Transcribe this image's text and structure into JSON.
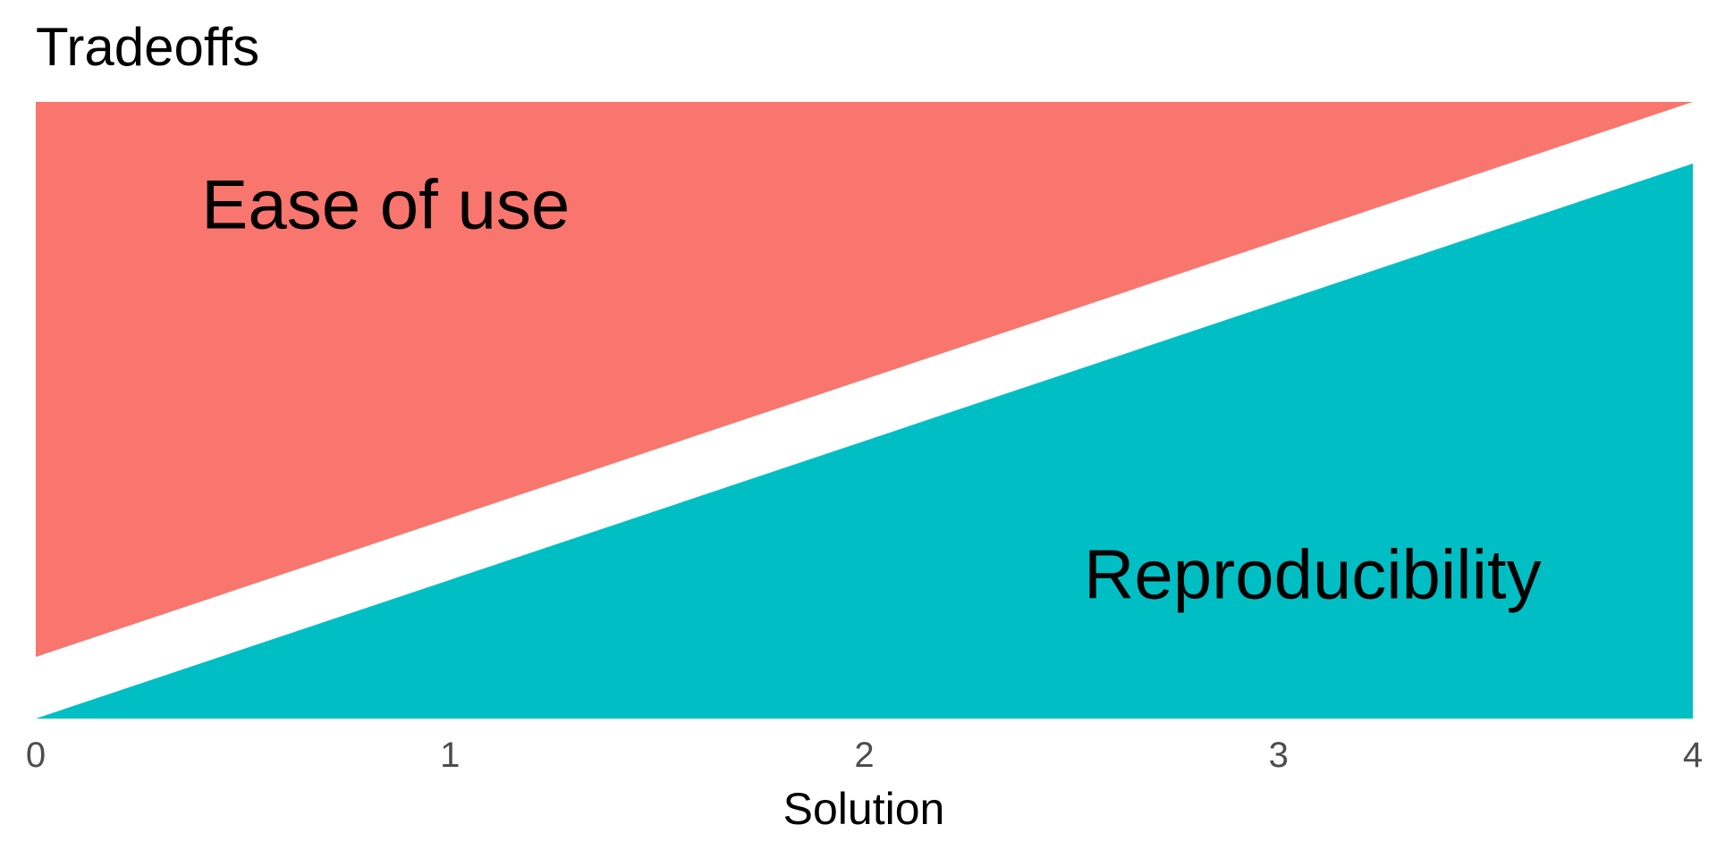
{
  "chart_data": {
    "type": "area",
    "title": "Tradeoffs",
    "xlabel": "Solution",
    "ylabel": "",
    "xlim": [
      0,
      4
    ],
    "ylim": [
      0,
      1
    ],
    "x_ticks": [
      0,
      1,
      2,
      3,
      4
    ],
    "x_tick_labels": [
      "0",
      "1",
      "2",
      "3",
      "4"
    ],
    "grid": false,
    "legend": "none",
    "series": [
      {
        "name": "Ease of use",
        "color": "#F8766D",
        "x": [
          0,
          4
        ],
        "y_lower": [
          0.1,
          1.0
        ],
        "y_upper": [
          1.0,
          1.0
        ]
      },
      {
        "name": "Reproducibility",
        "color": "#00BFC4",
        "x": [
          0,
          4
        ],
        "y_lower": [
          0.0,
          0.0
        ],
        "y_upper": [
          0.0,
          0.9
        ]
      }
    ],
    "annotations": [
      {
        "text": "Ease of use",
        "x": 0.4,
        "y": 0.795,
        "series": 0
      },
      {
        "text": "Reproducibility",
        "x": 2.53,
        "y": 0.195,
        "series": 1
      }
    ]
  }
}
